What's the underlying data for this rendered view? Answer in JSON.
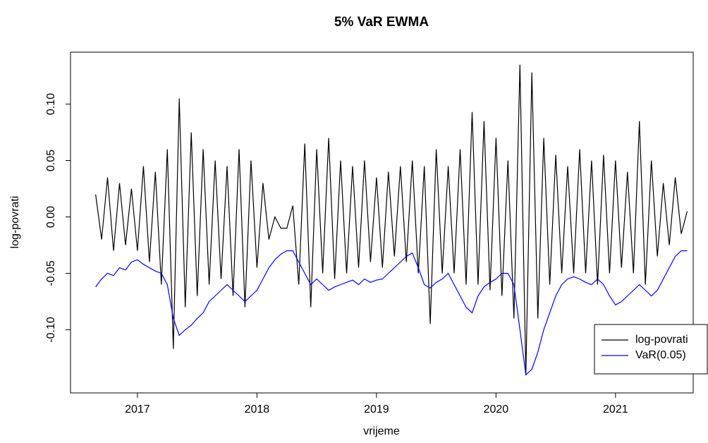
{
  "chart_data": {
    "type": "line",
    "title": "5% VaR EWMA",
    "x_label": "vrijeme",
    "y_label": "log-povrati",
    "x": [
      2016.65,
      2016.7,
      2016.75,
      2016.8,
      2016.85,
      2016.9,
      2016.95,
      2017.0,
      2017.05,
      2017.1,
      2017.15,
      2017.2,
      2017.25,
      2017.3,
      2017.35,
      2017.4,
      2017.45,
      2017.5,
      2017.55,
      2017.6,
      2017.65,
      2017.7,
      2017.75,
      2017.8,
      2017.85,
      2017.9,
      2017.95,
      2018.0,
      2018.05,
      2018.1,
      2018.15,
      2018.2,
      2018.25,
      2018.3,
      2018.35,
      2018.4,
      2018.45,
      2018.5,
      2018.55,
      2018.6,
      2018.65,
      2018.7,
      2018.75,
      2018.8,
      2018.85,
      2018.9,
      2018.95,
      2019.0,
      2019.05,
      2019.1,
      2019.15,
      2019.2,
      2019.25,
      2019.3,
      2019.35,
      2019.4,
      2019.45,
      2019.5,
      2019.55,
      2019.6,
      2019.65,
      2019.7,
      2019.75,
      2019.8,
      2019.85,
      2019.9,
      2019.95,
      2020.0,
      2020.05,
      2020.1,
      2020.15,
      2020.2,
      2020.25,
      2020.3,
      2020.35,
      2020.4,
      2020.45,
      2020.5,
      2020.55,
      2020.6,
      2020.65,
      2020.7,
      2020.75,
      2020.8,
      2020.85,
      2020.9,
      2020.95,
      2021.0,
      2021.05,
      2021.1,
      2021.15,
      2021.2,
      2021.25,
      2021.3,
      2021.35,
      2021.4,
      2021.45,
      2021.5,
      2021.55,
      2021.6
    ],
    "series": [
      {
        "name": "log-povrati",
        "color": "#000000",
        "values": [
          0.02,
          -0.02,
          0.035,
          -0.03,
          0.03,
          -0.025,
          0.025,
          -0.03,
          0.045,
          -0.04,
          0.04,
          -0.06,
          0.06,
          -0.117,
          0.105,
          -0.08,
          0.075,
          -0.07,
          0.06,
          -0.06,
          0.05,
          -0.055,
          0.045,
          -0.07,
          0.06,
          -0.08,
          0.05,
          -0.045,
          0.03,
          -0.02,
          0.0,
          -0.01,
          -0.01,
          0.01,
          -0.06,
          0.065,
          -0.08,
          0.06,
          -0.05,
          0.07,
          -0.055,
          0.05,
          -0.05,
          0.045,
          -0.045,
          0.05,
          -0.04,
          0.035,
          -0.045,
          0.04,
          -0.035,
          0.045,
          -0.04,
          0.05,
          -0.05,
          0.045,
          -0.095,
          0.06,
          -0.05,
          0.045,
          -0.05,
          0.06,
          -0.06,
          0.093,
          -0.06,
          0.085,
          -0.065,
          0.07,
          -0.07,
          0.05,
          -0.09,
          0.135,
          -0.14,
          0.128,
          -0.09,
          0.07,
          -0.06,
          0.055,
          -0.05,
          0.045,
          -0.05,
          0.06,
          -0.05,
          0.05,
          -0.06,
          0.055,
          -0.05,
          0.05,
          -0.045,
          0.04,
          -0.05,
          0.085,
          -0.06,
          0.05,
          -0.035,
          0.03,
          -0.025,
          0.035,
          -0.015,
          0.005
        ]
      },
      {
        "name": "VaR(0.05)",
        "color": "#0000ff",
        "values": [
          -0.062,
          -0.055,
          -0.05,
          -0.052,
          -0.045,
          -0.047,
          -0.04,
          -0.038,
          -0.042,
          -0.045,
          -0.048,
          -0.05,
          -0.06,
          -0.09,
          -0.105,
          -0.1,
          -0.096,
          -0.09,
          -0.085,
          -0.075,
          -0.07,
          -0.065,
          -0.06,
          -0.065,
          -0.07,
          -0.075,
          -0.07,
          -0.065,
          -0.055,
          -0.045,
          -0.038,
          -0.033,
          -0.03,
          -0.03,
          -0.04,
          -0.05,
          -0.06,
          -0.055,
          -0.06,
          -0.065,
          -0.062,
          -0.06,
          -0.058,
          -0.056,
          -0.06,
          -0.055,
          -0.058,
          -0.056,
          -0.055,
          -0.05,
          -0.045,
          -0.04,
          -0.035,
          -0.032,
          -0.045,
          -0.06,
          -0.063,
          -0.058,
          -0.055,
          -0.05,
          -0.06,
          -0.07,
          -0.08,
          -0.085,
          -0.07,
          -0.062,
          -0.058,
          -0.055,
          -0.05,
          -0.05,
          -0.06,
          -0.1,
          -0.14,
          -0.135,
          -0.12,
          -0.1,
          -0.085,
          -0.07,
          -0.06,
          -0.055,
          -0.053,
          -0.055,
          -0.058,
          -0.06,
          -0.055,
          -0.06,
          -0.07,
          -0.078,
          -0.075,
          -0.07,
          -0.065,
          -0.06,
          -0.065,
          -0.07,
          -0.065,
          -0.055,
          -0.045,
          -0.035,
          -0.03,
          -0.03
        ]
      }
    ],
    "xlim": [
      2016.44,
      2021.65
    ],
    "xticks": [
      2017,
      2018,
      2019,
      2020,
      2021
    ],
    "ylim": [
      -0.156,
      0.146
    ],
    "yticks": [
      {
        "value": -0.1,
        "label": "-0.10"
      },
      -0.05,
      {
        "value": 0,
        "label": "0.00"
      },
      0.05,
      {
        "value": 0.1,
        "label": "0.10"
      }
    ],
    "legend": "bottomright"
  }
}
